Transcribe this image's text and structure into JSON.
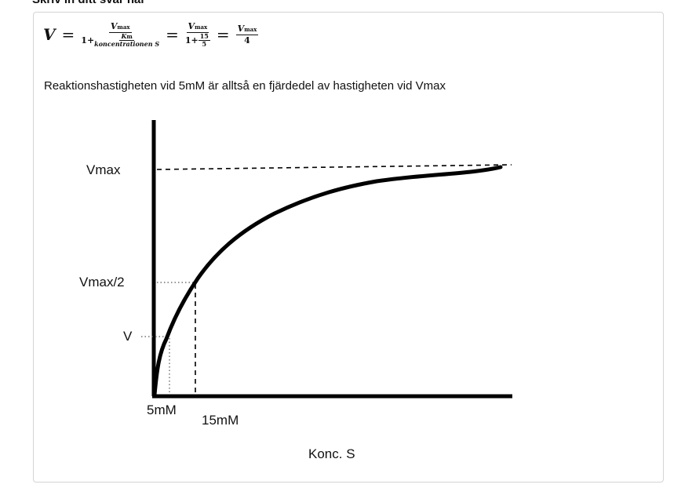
{
  "heading": "Skriv in ditt svar här",
  "formula": {
    "lhs": "V",
    "equals": "=",
    "vmax": "V",
    "max_sub": "max",
    "one_plus": "1+",
    "km": "K",
    "km_sub": "m",
    "conc": "koncentrationen S",
    "frac_num": "15",
    "frac_den": "5",
    "result_den": "4"
  },
  "sentence": "Reaktionshastigheten vid 5mM är alltså en fjärdedel av hastigheten vid Vmax",
  "diagram": {
    "y_labels": {
      "vmax": "Vmax",
      "half": "Vmax/2",
      "v": "V"
    },
    "x_labels": {
      "five": "5mM",
      "fifteen": "15mM"
    },
    "x_axis_title": "Konc. S"
  }
}
